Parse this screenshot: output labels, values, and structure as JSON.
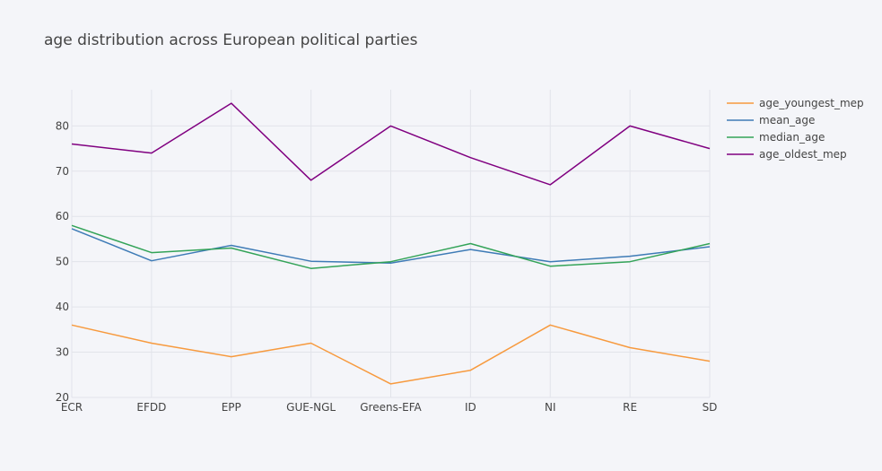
{
  "chart_data": {
    "type": "line",
    "title": "age distribution across European political parties",
    "categories": [
      "ECR",
      "EFDD",
      "EPP",
      "GUE-NGL",
      "Greens-EFA",
      "ID",
      "NI",
      "RE",
      "SD"
    ],
    "ylim": [
      20,
      88
    ],
    "yticks": [
      20,
      30,
      40,
      50,
      60,
      70,
      80
    ],
    "grid": true,
    "legend_position": "top-right",
    "series": [
      {
        "name": "age_youngest_mep",
        "color": "#f79a3e",
        "values": [
          36,
          32,
          29,
          32,
          23,
          26,
          36,
          31,
          28
        ]
      },
      {
        "name": "mean_age",
        "color": "#3e7bb6",
        "values": [
          57.3,
          50.2,
          53.6,
          50.1,
          49.7,
          52.7,
          50.0,
          51.2,
          53.3
        ]
      },
      {
        "name": "median_age",
        "color": "#33a358",
        "values": [
          58,
          52,
          53,
          48.5,
          50,
          54,
          49,
          50,
          54
        ]
      },
      {
        "name": "age_oldest_mep",
        "color": "#800080",
        "values": [
          76,
          74,
          85,
          68,
          80,
          73,
          67,
          80,
          75
        ]
      }
    ]
  }
}
